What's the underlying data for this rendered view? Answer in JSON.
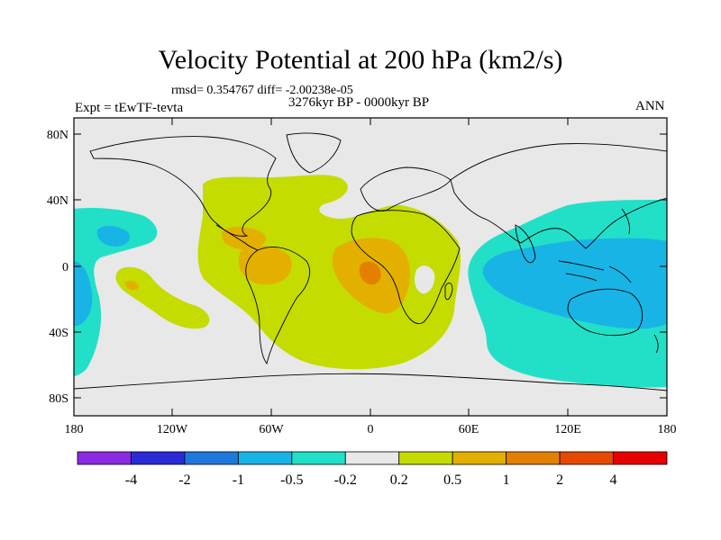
{
  "title": "Velocity Potential at 200 hPa (km2/s)",
  "stats": "rmsd= 0.354767 diff= -2.00238e-05",
  "experiment": "Expt = tEwTF-tevta",
  "period": "3276kyr BP - 0000kyr BP",
  "season": "ANN",
  "lat_labels": [
    "80N",
    "40N",
    "0",
    "40S",
    "80S"
  ],
  "lon_labels": [
    "180",
    "120W",
    "60W",
    "0",
    "60E",
    "120E",
    "180"
  ],
  "colorbar": {
    "colors": [
      "#8a2be2",
      "#2b2bd6",
      "#1f78dc",
      "#19b4e6",
      "#22e0c8",
      "#e8e8e8",
      "#c4dc00",
      "#e4b000",
      "#e48000",
      "#e64a00",
      "#e60000"
    ],
    "labels": [
      "-4",
      "-2",
      "-1",
      "-0.5",
      "-0.2",
      "0.2",
      "0.5",
      "1",
      "2",
      "4"
    ]
  }
}
